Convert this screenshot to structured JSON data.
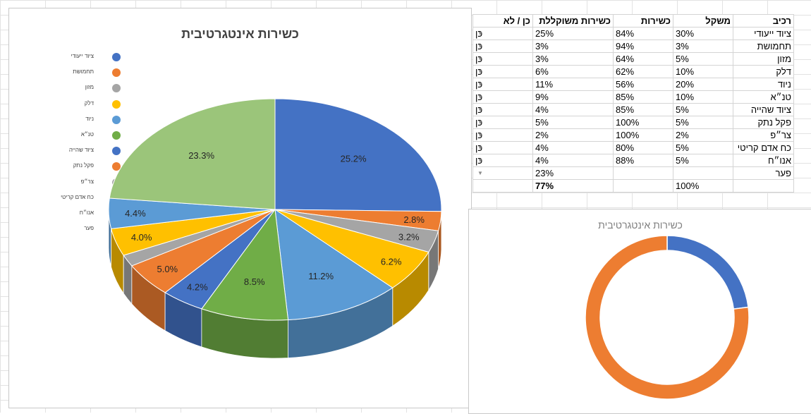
{
  "pie_chart": {
    "title": "כשירות אינטגרטיבית"
  },
  "donut_chart": {
    "title": "כשירות אינטגרטיבית"
  },
  "table": {
    "headers": {
      "name": "רכיב",
      "weight": "משקל",
      "readiness": "כשירות",
      "weighted": "כשירות משוקללת",
      "yesno": "כן / לא"
    },
    "rows": [
      {
        "name": "ציוד ייעודי",
        "weight": "30%",
        "readiness": "84%",
        "weighted": "25%",
        "yesno": "כן"
      },
      {
        "name": "תחמושת",
        "weight": "3%",
        "readiness": "94%",
        "weighted": "3%",
        "yesno": "כן"
      },
      {
        "name": "מזון",
        "weight": "5%",
        "readiness": "64%",
        "weighted": "3%",
        "yesno": "כן"
      },
      {
        "name": "דלק",
        "weight": "10%",
        "readiness": "62%",
        "weighted": "6%",
        "yesno": "כן"
      },
      {
        "name": "ניוד",
        "weight": "20%",
        "readiness": "56%",
        "weighted": "11%",
        "yesno": "כן"
      },
      {
        "name": "טנ״א",
        "weight": "10%",
        "readiness": "85%",
        "weighted": "9%",
        "yesno": "כן"
      },
      {
        "name": "ציוד שהייה",
        "weight": "5%",
        "readiness": "85%",
        "weighted": "4%",
        "yesno": "כן"
      },
      {
        "name": "פקל נתק",
        "weight": "5%",
        "readiness": "100%",
        "weighted": "5%",
        "yesno": "כן"
      },
      {
        "name": "צר״פ",
        "weight": "2%",
        "readiness": "100%",
        "weighted": "2%",
        "yesno": "כן"
      },
      {
        "name": "כח אדם קריטי",
        "weight": "5%",
        "readiness": "80%",
        "weighted": "4%",
        "yesno": "כן"
      },
      {
        "name": "אנו״ח",
        "weight": "5%",
        "readiness": "88%",
        "weighted": "4%",
        "yesno": "כן"
      }
    ],
    "gap_row": {
      "name": "פער",
      "weighted": "23%"
    },
    "total_row": {
      "weight": "100%",
      "weighted": "77%"
    }
  },
  "chart_data": [
    {
      "type": "pie",
      "title": "כשירות אינטגרטיבית",
      "categories": [
        "ציוד ייעודי",
        "תחמושת",
        "מזון",
        "דלק",
        "ניוד",
        "טנ״א",
        "ציוד שהייה",
        "פקל נתק",
        "צר״פ",
        "כח אדם קריטי",
        "אנו״ח",
        "פער"
      ],
      "values": [
        25.2,
        2.8,
        3.2,
        6.2,
        11.2,
        8.5,
        4.2,
        5.0,
        1.7,
        4.0,
        4.4,
        23.3
      ],
      "data_labels": [
        "25.2%",
        "2.8%",
        "3.2%",
        "6.2%",
        "11.2%",
        "8.5%",
        "4.2%",
        "5.0%",
        "",
        "4.0%",
        "4.4%",
        "23.3%"
      ],
      "colors": [
        "#4472C4",
        "#ED7D31",
        "#A5A5A5",
        "#FFC000",
        "#5B9BD5",
        "#70AD47",
        "#4472C4",
        "#ED7D31",
        "#A5A5A5",
        "#FFC000",
        "#5B9BD5",
        "#9BC57A"
      ],
      "legend_position": "left",
      "style": "3d"
    },
    {
      "type": "pie",
      "subtype": "donut",
      "title": "כשירות אינטגרטיבית",
      "values": [
        23,
        77
      ],
      "colors": [
        "#4472C4",
        "#ED7D31"
      ]
    }
  ]
}
